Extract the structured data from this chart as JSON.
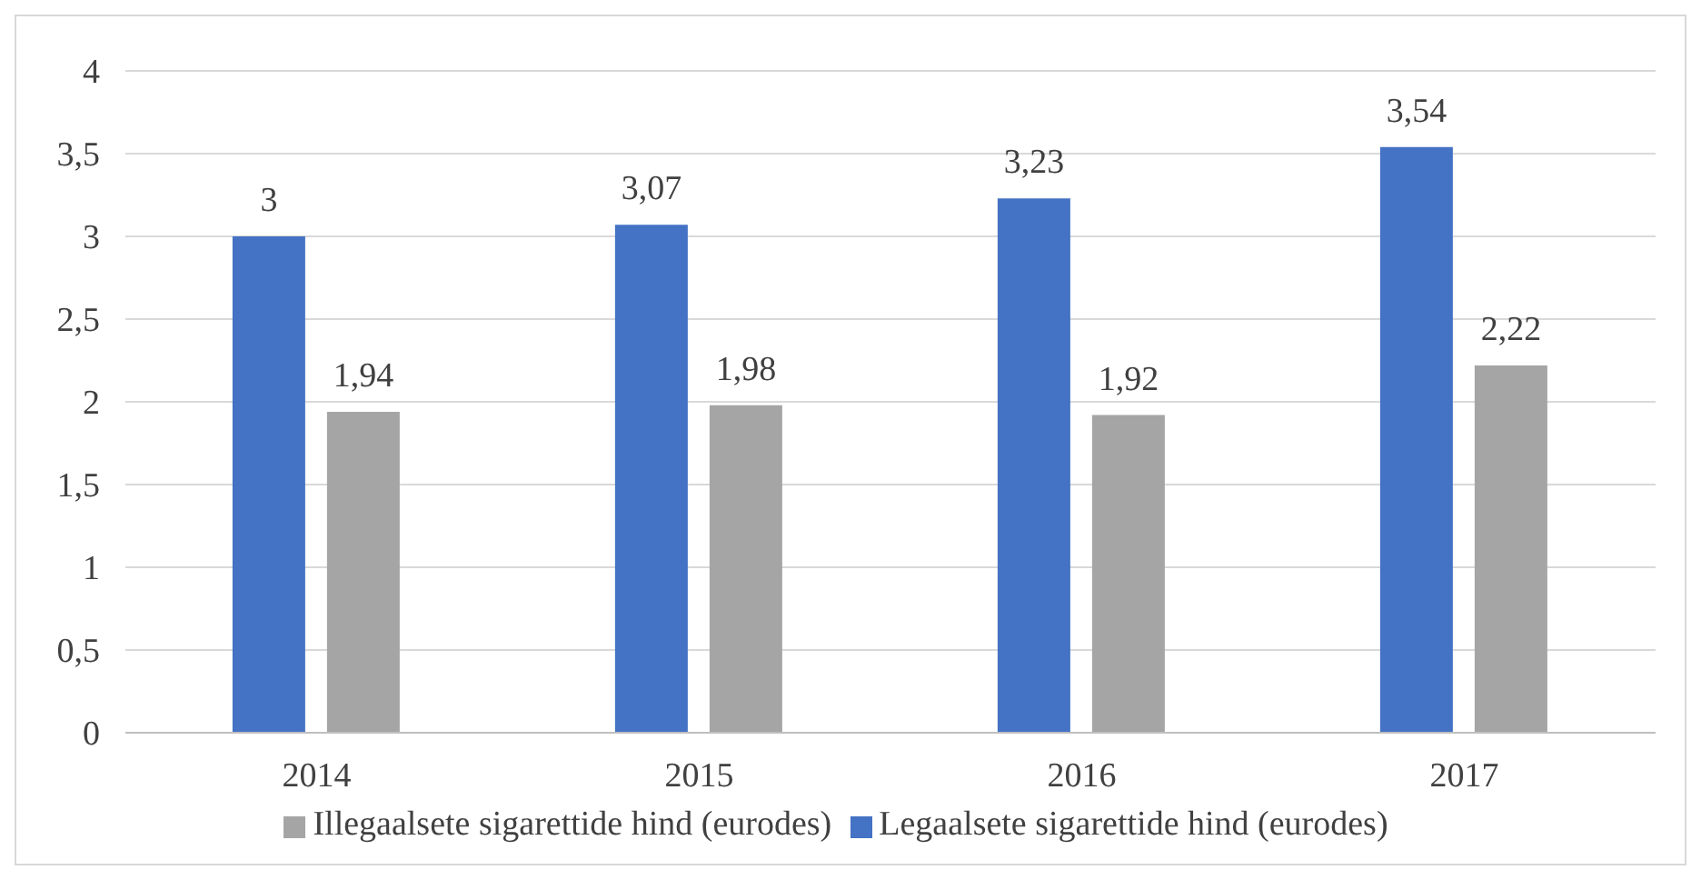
{
  "chart_data": {
    "type": "bar",
    "categories": [
      "2014",
      "2015",
      "2016",
      "2017"
    ],
    "series": [
      {
        "name": "Legaalsete sigarettide hind (eurodes)",
        "color": "#4472c4",
        "values": [
          3,
          3.07,
          3.23,
          3.54
        ],
        "value_labels": [
          "3",
          "3,07",
          "3,23",
          "3,54"
        ]
      },
      {
        "name": "Illegaalsete sigarettide hind (eurodes)",
        "color": "#a5a5a5",
        "values": [
          1.94,
          1.98,
          1.92,
          2.22
        ],
        "value_labels": [
          "1,94",
          "1,98",
          "1,92",
          "2,22"
        ]
      }
    ],
    "ylim": [
      0,
      4
    ],
    "yticks": [
      0,
      {
        "value": 0.5,
        "label": "0,5"
      },
      1,
      {
        "value": 1.5,
        "label": "1,5"
      },
      2,
      {
        "value": 2.5,
        "label": "2,5"
      },
      3,
      {
        "value": 3.5,
        "label": "3,5"
      },
      4
    ],
    "grid": "y",
    "legend": "bottom"
  }
}
